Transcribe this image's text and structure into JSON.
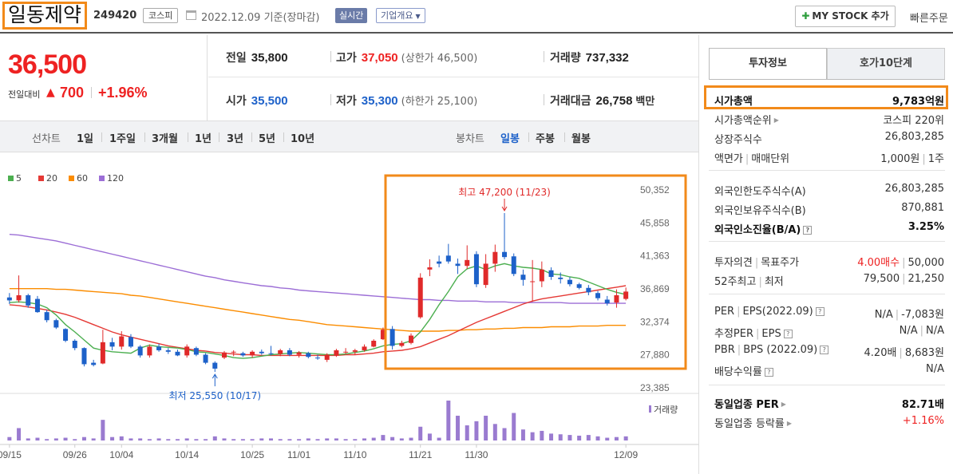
{
  "header": {
    "company_name": "일동제약",
    "code": "249420",
    "market": "코스피",
    "date": "2022.12.09 기준(장마감)",
    "realtime": "실시간",
    "overview": "기업개요",
    "mystock": "MY STOCK 추가",
    "quick_order": "빠른주문"
  },
  "price": {
    "current": "36,500",
    "diff_label": "전일대비",
    "diff": "700",
    "pct": "+1.96%"
  },
  "quote": {
    "prev_label": "전일",
    "prev": "35,800",
    "high_label": "고가",
    "high": "37,050",
    "upper_limit": "(상한가 46,500)",
    "volume_label": "거래량",
    "volume": "737,332",
    "open_label": "시가",
    "open": "35,500",
    "low_label": "저가",
    "low": "35,300",
    "lower_limit": "(하한가 25,100)",
    "amount_label": "거래대금",
    "amount": "26,758",
    "amount_unit": "백만"
  },
  "periods": {
    "line_title": "선차트",
    "line_items": [
      "1일",
      "1주일",
      "3개월",
      "1년",
      "3년",
      "5년",
      "10년"
    ],
    "candle_title": "봉차트",
    "candle_items": [
      "일봉",
      "주봉",
      "월봉"
    ],
    "active_candle": "일봉"
  },
  "chart_data": {
    "type": "candlestick",
    "legend": [
      {
        "name": "5",
        "color": "#4caf50"
      },
      {
        "name": "20",
        "color": "#e53935"
      },
      {
        "name": "60",
        "color": "#fb8c00"
      },
      {
        "name": "120",
        "color": "#9c6ed6"
      }
    ],
    "y_ticks": [
      50352,
      45858,
      41363,
      36869,
      32374,
      27880,
      23385
    ],
    "ylim": [
      23385,
      50352
    ],
    "x_ticks": [
      "09/15",
      "09/26",
      "10/04",
      "10/14",
      "10/25",
      "11/01",
      "11/10",
      "11/21",
      "11/30",
      "12/09"
    ],
    "annotations": {
      "high": "최고 47,200 (11/23)",
      "low": "최저 25,550 (10/17)"
    },
    "volume_label": "거래량",
    "candles": [
      [
        35700,
        36300,
        34800,
        35300
      ],
      [
        35300,
        38700,
        35000,
        36000
      ],
      [
        36000,
        36200,
        34300,
        34600
      ],
      [
        35500,
        35900,
        33600,
        33700
      ],
      [
        33700,
        34000,
        32300,
        32600
      ],
      [
        32600,
        32800,
        31400,
        31600
      ],
      [
        31400,
        31500,
        29600,
        29800
      ],
      [
        29800,
        30000,
        28500,
        28800
      ],
      [
        28800,
        28900,
        26300,
        26600
      ],
      [
        26800,
        27200,
        26300,
        26500
      ],
      [
        26700,
        31300,
        26600,
        29600
      ],
      [
        29600,
        30200,
        28500,
        29000
      ],
      [
        29000,
        31100,
        28600,
        30400
      ],
      [
        30300,
        30700,
        28800,
        29000
      ],
      [
        29000,
        29200,
        27500,
        27800
      ],
      [
        27800,
        29300,
        27500,
        29000
      ],
      [
        29000,
        29400,
        28300,
        28500
      ],
      [
        28500,
        28800,
        28000,
        28300
      ],
      [
        28300,
        28600,
        27700,
        27800
      ],
      [
        27800,
        29300,
        27500,
        29000
      ],
      [
        28800,
        29000,
        27700,
        27900
      ],
      [
        27900,
        28100,
        26600,
        26800
      ],
      [
        26800,
        27000,
        25550,
        26000
      ],
      [
        27500,
        28400,
        27300,
        28200
      ],
      [
        28200,
        28500,
        27700,
        28300
      ],
      [
        28100,
        28300,
        27600,
        27800
      ],
      [
        27800,
        28500,
        27500,
        28300
      ],
      [
        28300,
        28600,
        27900,
        28100
      ],
      [
        28100,
        29100,
        27800,
        28000
      ],
      [
        28000,
        28700,
        27700,
        28500
      ],
      [
        28500,
        28800,
        27700,
        27900
      ],
      [
        27900,
        28400,
        27500,
        28200
      ],
      [
        28100,
        28300,
        27400,
        27600
      ],
      [
        27500,
        27900,
        27200,
        27400
      ],
      [
        27200,
        28100,
        26900,
        27900
      ],
      [
        27800,
        28700,
        27600,
        28500
      ],
      [
        28300,
        28800,
        28000,
        28300
      ],
      [
        28300,
        28700,
        27900,
        28500
      ],
      [
        28500,
        29300,
        28300,
        29000
      ],
      [
        29000,
        30000,
        28900,
        29800
      ],
      [
        30000,
        31600,
        29900,
        31300
      ],
      [
        31400,
        31800,
        28600,
        29100
      ],
      [
        29100,
        29800,
        28900,
        29500
      ],
      [
        29500,
        30800,
        29300,
        30500
      ],
      [
        33000,
        39000,
        32800,
        38400
      ],
      [
        39500,
        40900,
        38600,
        39800
      ],
      [
        40600,
        41400,
        39800,
        40300
      ],
      [
        41400,
        43000,
        40300,
        40600
      ],
      [
        40300,
        41000,
        38900,
        40000
      ],
      [
        40000,
        42800,
        39600,
        40800
      ],
      [
        41600,
        42000,
        37100,
        37500
      ],
      [
        37400,
        41600,
        37000,
        40300
      ],
      [
        40300,
        42900,
        39200,
        41900
      ],
      [
        41900,
        47200,
        40900,
        41200
      ],
      [
        41300,
        41700,
        38600,
        38900
      ],
      [
        38800,
        39500,
        37300,
        38100
      ],
      [
        37800,
        40800,
        35100,
        37900
      ],
      [
        37900,
        40600,
        37100,
        39500
      ],
      [
        39400,
        39800,
        38100,
        38500
      ],
      [
        38400,
        39100,
        37600,
        38200
      ],
      [
        38100,
        38500,
        37200,
        37500
      ],
      [
        37500,
        37700,
        36800,
        37000
      ],
      [
        37000,
        37400,
        36000,
        36400
      ],
      [
        36300,
        36600,
        35300,
        35600
      ],
      [
        35400,
        35900,
        34600,
        34900
      ],
      [
        35000,
        36800,
        34300,
        36000
      ],
      [
        35500,
        37050,
        35300,
        36500
      ]
    ],
    "volumes": [
      5,
      18,
      3,
      4,
      2,
      3,
      4,
      2,
      5,
      3,
      30,
      5,
      6,
      3,
      3,
      2,
      3,
      2,
      2,
      3,
      2,
      2,
      6,
      3,
      2,
      2,
      2,
      3,
      3,
      2,
      2,
      2,
      3,
      2,
      3,
      3,
      2,
      2,
      3,
      4,
      8,
      5,
      3,
      4,
      20,
      10,
      4,
      58,
      36,
      22,
      28,
      36,
      24,
      18,
      40,
      16,
      12,
      14,
      10,
      9,
      8,
      7,
      8,
      6,
      4,
      5,
      6
    ],
    "ma5": [
      35000,
      35100,
      35000,
      34800,
      34300,
      33300,
      32000,
      31000,
      29900,
      28800,
      28500,
      28300,
      28200,
      28100,
      28800,
      29200,
      29000,
      28900,
      28800,
      28600,
      28300,
      28200,
      28000,
      27800,
      27500,
      27400,
      27500,
      27700,
      27900,
      28000,
      28100,
      28200,
      28100,
      28000,
      27900,
      27900,
      28000,
      28200,
      28400,
      28700,
      29100,
      29300,
      29400,
      29800,
      31000,
      32700,
      34700,
      36500,
      38500,
      39600,
      40000,
      39500,
      40000,
      40300,
      40000,
      39800,
      39700,
      39500,
      38900,
      38800,
      38500,
      38300,
      37800,
      37300,
      36800,
      36400,
      36100
    ],
    "ma20": [
      34700,
      34600,
      34400,
      34200,
      34000,
      33700,
      33400,
      33000,
      32500,
      32000,
      31500,
      31000,
      30600,
      30300,
      30000,
      29700,
      29400,
      29100,
      28900,
      28700,
      28500,
      28400,
      28200,
      28100,
      28000,
      27900,
      27900,
      27800,
      27800,
      27800,
      27800,
      27800,
      27800,
      27800,
      27800,
      27800,
      27900,
      27900,
      28000,
      28100,
      28300,
      28400,
      28500,
      28700,
      29000,
      29500,
      30000,
      30500,
      31100,
      31700,
      32300,
      32800,
      33300,
      33800,
      34300,
      34800,
      35200,
      35500,
      35700,
      35900,
      36100,
      36300,
      36500,
      36700,
      36900,
      37100,
      37300
    ],
    "ma60": [
      36900,
      36900,
      36900,
      36900,
      36900,
      36800,
      36800,
      36700,
      36600,
      36500,
      36400,
      36300,
      36200,
      36000,
      35900,
      35700,
      35500,
      35300,
      35100,
      34900,
      34700,
      34500,
      34300,
      34100,
      33900,
      33700,
      33500,
      33300,
      33100,
      32900,
      32700,
      32600,
      32400,
      32200,
      32000,
      31900,
      31800,
      31700,
      31600,
      31500,
      31400,
      31300,
      31200,
      31100,
      31100,
      31100,
      31100,
      31200,
      31200,
      31300,
      31300,
      31400,
      31400,
      31500,
      31500,
      31600,
      31600,
      31600,
      31700,
      31700,
      31700,
      31800,
      31800,
      31800,
      31900,
      31900,
      31900
    ],
    "ma120": [
      44300,
      44200,
      44000,
      43800,
      43600,
      43400,
      43100,
      42800,
      42500,
      42200,
      41900,
      41600,
      41300,
      41000,
      40700,
      40400,
      40100,
      39800,
      39500,
      39200,
      38900,
      38600,
      38400,
      38100,
      37900,
      37700,
      37500,
      37300,
      37200,
      37000,
      36900,
      36700,
      36600,
      36500,
      36400,
      36300,
      36200,
      36100,
      36000,
      35900,
      35800,
      35700,
      35600,
      35500,
      35400,
      35400,
      35300,
      35300,
      35200,
      35200,
      35200,
      35100,
      35100,
      35100,
      35000,
      35000,
      35000,
      35000,
      35000,
      35000,
      34900,
      34900,
      34900,
      34900,
      34900,
      34900,
      34900
    ]
  },
  "invest": {
    "tab_on": "투자정보",
    "tab_off": "호가10단계",
    "rows": [
      {
        "k": "시가총액",
        "v": "9,783억원"
      },
      {
        "k": "시가총액순위",
        "v": "코스피 220위"
      },
      {
        "k": "상장주식수",
        "v": "26,803,285"
      },
      {
        "k": "액면가",
        "k2": "매매단위",
        "v": "1,000원",
        "v2": "1주"
      },
      {
        "k": "외국인한도주식수(A)",
        "v": "26,803,285"
      },
      {
        "k": "외국인보유주식수(B)",
        "v": "870,881"
      },
      {
        "k": "외국인소진율(B/A)",
        "v": "3.25%"
      },
      {
        "k": "투자의견",
        "k2": "목표주가",
        "v": "4.00매수",
        "v2": "50,000"
      },
      {
        "k": "52주최고",
        "k2": "최저",
        "v": "79,500",
        "v2": "21,250"
      },
      {
        "k": "PER",
        "k2": "EPS(2022.09)",
        "v": "N/A",
        "v2": "-7,083원"
      },
      {
        "k": "추정PER",
        "k2": "EPS",
        "v": "N/A",
        "v2": "N/A"
      },
      {
        "k": "PBR",
        "k2": "BPS (2022.09)",
        "v": "4.20배",
        "v2": "8,683원"
      },
      {
        "k": "배당수익률",
        "v": "N/A"
      },
      {
        "k": "동일업종 PER",
        "v": "82.71배"
      },
      {
        "k": "동일업종 등락률",
        "v": "+1.16%"
      }
    ]
  }
}
